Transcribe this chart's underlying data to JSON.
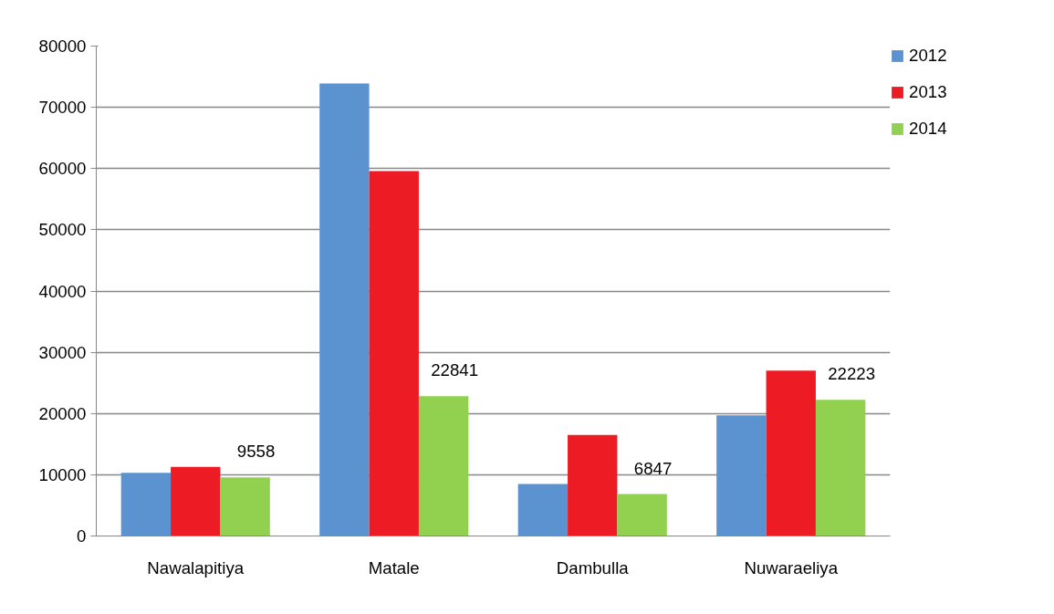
{
  "chart_data": {
    "type": "bar",
    "categories": [
      "Nawalapitiya",
      "Matale",
      "Dambulla",
      "Nuwaraeliya"
    ],
    "series": [
      {
        "name": "2012",
        "color": "#5b93d0",
        "values": [
          10300,
          73900,
          8500,
          19700
        ]
      },
      {
        "name": "2013",
        "color": "#ed1c24",
        "values": [
          11300,
          59600,
          16500,
          27000
        ]
      },
      {
        "name": "2014",
        "color": "#92d050",
        "values": [
          9558,
          22841,
          6847,
          22223
        ],
        "value_labels": [
          "9558",
          "22841",
          "6847",
          "22223"
        ]
      }
    ],
    "ylim": [
      0,
      80000
    ],
    "yticks": [
      0,
      10000,
      20000,
      30000,
      40000,
      50000,
      60000,
      70000,
      80000
    ],
    "grid": "y",
    "legend": "right"
  }
}
